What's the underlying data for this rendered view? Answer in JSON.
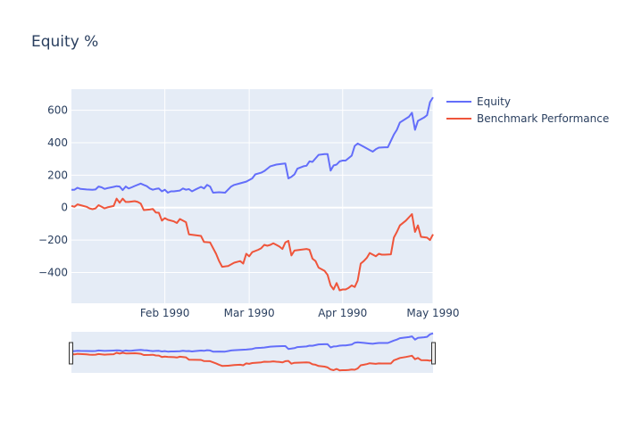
{
  "chart_data": {
    "type": "line",
    "title": "Equity %",
    "xlabel": "",
    "ylabel": "",
    "x_range": [
      "1990-01-01",
      "1990-05-01"
    ],
    "ylim": [
      -590,
      730
    ],
    "y_ticks": [
      600,
      400,
      200,
      0,
      -200,
      -400
    ],
    "y_tick_labels": [
      "600",
      "400",
      "200",
      "0",
      "−200",
      "−400"
    ],
    "x_ticks": [
      "1990-02-01",
      "1990-03-01",
      "1990-04-01",
      "1990-05-01"
    ],
    "x_tick_labels": [
      "Feb 1990",
      "Mar 1990",
      "Apr 1990",
      "May 1990"
    ],
    "grid": true,
    "legend_position": "top-right",
    "range_slider": true,
    "colors": {
      "plot_bg": "#E5ECF6",
      "text": "#2A3F5F",
      "grid": "#ffffff"
    },
    "series": [
      {
        "name": "Equity",
        "color": "#636EFA",
        "points": [
          [
            "1990-01-01",
            110
          ],
          [
            "1990-01-02",
            110
          ],
          [
            "1990-01-03",
            122
          ],
          [
            "1990-01-04",
            115
          ],
          [
            "1990-01-06",
            112
          ],
          [
            "1990-01-08",
            110
          ],
          [
            "1990-01-09",
            112
          ],
          [
            "1990-01-10",
            130
          ],
          [
            "1990-01-11",
            125
          ],
          [
            "1990-01-12",
            115
          ],
          [
            "1990-01-13",
            120
          ],
          [
            "1990-01-15",
            128
          ],
          [
            "1990-01-16",
            132
          ],
          [
            "1990-01-17",
            130
          ],
          [
            "1990-01-18",
            108
          ],
          [
            "1990-01-19",
            130
          ],
          [
            "1990-01-20",
            118
          ],
          [
            "1990-01-21",
            125
          ],
          [
            "1990-01-22",
            133
          ],
          [
            "1990-01-24",
            148
          ],
          [
            "1990-01-25",
            140
          ],
          [
            "1990-01-26",
            132
          ],
          [
            "1990-01-27",
            118
          ],
          [
            "1990-01-28",
            110
          ],
          [
            "1990-01-29",
            115
          ],
          [
            "1990-01-30",
            118
          ],
          [
            "1990-01-31",
            100
          ],
          [
            "1990-02-01",
            110
          ],
          [
            "1990-02-02",
            92
          ],
          [
            "1990-02-03",
            100
          ],
          [
            "1990-02-04",
            100
          ],
          [
            "1990-02-06",
            105
          ],
          [
            "1990-02-07",
            118
          ],
          [
            "1990-02-08",
            110
          ],
          [
            "1990-02-09",
            114
          ],
          [
            "1990-02-10",
            100
          ],
          [
            "1990-02-11",
            110
          ],
          [
            "1990-02-13",
            128
          ],
          [
            "1990-02-14",
            118
          ],
          [
            "1990-02-15",
            140
          ],
          [
            "1990-02-16",
            130
          ],
          [
            "1990-02-17",
            92
          ],
          [
            "1990-02-19",
            95
          ],
          [
            "1990-02-21",
            92
          ],
          [
            "1990-02-23",
            130
          ],
          [
            "1990-02-24",
            140
          ],
          [
            "1990-02-26",
            150
          ],
          [
            "1990-02-28",
            160
          ],
          [
            "1990-03-02",
            180
          ],
          [
            "1990-03-03",
            205
          ],
          [
            "1990-03-05",
            215
          ],
          [
            "1990-03-06",
            225
          ],
          [
            "1990-03-07",
            240
          ],
          [
            "1990-03-08",
            255
          ],
          [
            "1990-03-10",
            265
          ],
          [
            "1990-03-12",
            270
          ],
          [
            "1990-03-13",
            272
          ],
          [
            "1990-03-14",
            180
          ],
          [
            "1990-03-15",
            190
          ],
          [
            "1990-03-16",
            205
          ],
          [
            "1990-03-17",
            240
          ],
          [
            "1990-03-19",
            255
          ],
          [
            "1990-03-20",
            258
          ],
          [
            "1990-03-21",
            285
          ],
          [
            "1990-03-22",
            282
          ],
          [
            "1990-03-24",
            325
          ],
          [
            "1990-03-26",
            330
          ],
          [
            "1990-03-27",
            330
          ],
          [
            "1990-03-28",
            228
          ],
          [
            "1990-03-29",
            260
          ],
          [
            "1990-03-30",
            265
          ],
          [
            "1990-03-31",
            285
          ],
          [
            "1990-04-01",
            290
          ],
          [
            "1990-04-02",
            290
          ],
          [
            "1990-04-04",
            320
          ],
          [
            "1990-04-05",
            380
          ],
          [
            "1990-04-06",
            395
          ],
          [
            "1990-04-08",
            375
          ],
          [
            "1990-04-10",
            355
          ],
          [
            "1990-04-11",
            345
          ],
          [
            "1990-04-12",
            360
          ],
          [
            "1990-04-13",
            370
          ],
          [
            "1990-04-15",
            372
          ],
          [
            "1990-04-16",
            372
          ],
          [
            "1990-04-18",
            450
          ],
          [
            "1990-04-19",
            480
          ],
          [
            "1990-04-20",
            525
          ],
          [
            "1990-04-23",
            560
          ],
          [
            "1990-04-24",
            585
          ],
          [
            "1990-04-25",
            480
          ],
          [
            "1990-04-26",
            535
          ],
          [
            "1990-04-28",
            555
          ],
          [
            "1990-04-29",
            570
          ],
          [
            "1990-04-30",
            650
          ],
          [
            "1990-05-01",
            680
          ]
        ]
      },
      {
        "name": "Benchmark Performance",
        "color": "#EF553B",
        "points": [
          [
            "1990-01-01",
            10
          ],
          [
            "1990-01-02",
            5
          ],
          [
            "1990-01-03",
            20
          ],
          [
            "1990-01-04",
            15
          ],
          [
            "1990-01-06",
            5
          ],
          [
            "1990-01-07",
            -5
          ],
          [
            "1990-01-08",
            -10
          ],
          [
            "1990-01-09",
            -5
          ],
          [
            "1990-01-10",
            15
          ],
          [
            "1990-01-11",
            5
          ],
          [
            "1990-01-12",
            -5
          ],
          [
            "1990-01-13",
            2
          ],
          [
            "1990-01-15",
            10
          ],
          [
            "1990-01-16",
            55
          ],
          [
            "1990-01-17",
            30
          ],
          [
            "1990-01-18",
            55
          ],
          [
            "1990-01-19",
            35
          ],
          [
            "1990-01-20",
            35
          ],
          [
            "1990-01-22",
            40
          ],
          [
            "1990-01-23",
            35
          ],
          [
            "1990-01-24",
            25
          ],
          [
            "1990-01-25",
            -15
          ],
          [
            "1990-01-27",
            -12
          ],
          [
            "1990-01-28",
            -8
          ],
          [
            "1990-01-29",
            -30
          ],
          [
            "1990-01-30",
            -32
          ],
          [
            "1990-01-31",
            -80
          ],
          [
            "1990-02-01",
            -65
          ],
          [
            "1990-02-02",
            -75
          ],
          [
            "1990-02-04",
            -85
          ],
          [
            "1990-02-05",
            -95
          ],
          [
            "1990-02-06",
            -70
          ],
          [
            "1990-02-08",
            -90
          ],
          [
            "1990-02-09",
            -165
          ],
          [
            "1990-02-11",
            -170
          ],
          [
            "1990-02-13",
            -175
          ],
          [
            "1990-02-14",
            -212
          ],
          [
            "1990-02-16",
            -215
          ],
          [
            "1990-02-18",
            -285
          ],
          [
            "1990-02-19",
            -330
          ],
          [
            "1990-02-20",
            -365
          ],
          [
            "1990-02-22",
            -360
          ],
          [
            "1990-02-23",
            -350
          ],
          [
            "1990-02-24",
            -340
          ],
          [
            "1990-02-26",
            -330
          ],
          [
            "1990-02-27",
            -345
          ],
          [
            "1990-02-28",
            -285
          ],
          [
            "1990-03-01",
            -300
          ],
          [
            "1990-03-02",
            -275
          ],
          [
            "1990-03-04",
            -260
          ],
          [
            "1990-03-05",
            -250
          ],
          [
            "1990-03-06",
            -230
          ],
          [
            "1990-03-07",
            -235
          ],
          [
            "1990-03-08",
            -230
          ],
          [
            "1990-03-09",
            -220
          ],
          [
            "1990-03-10",
            -230
          ],
          [
            "1990-03-11",
            -240
          ],
          [
            "1990-03-12",
            -255
          ],
          [
            "1990-03-13",
            -215
          ],
          [
            "1990-03-14",
            -205
          ],
          [
            "1990-03-15",
            -295
          ],
          [
            "1990-03-16",
            -265
          ],
          [
            "1990-03-18",
            -260
          ],
          [
            "1990-03-20",
            -255
          ],
          [
            "1990-03-21",
            -260
          ],
          [
            "1990-03-22",
            -315
          ],
          [
            "1990-03-23",
            -330
          ],
          [
            "1990-03-24",
            -370
          ],
          [
            "1990-03-26",
            -390
          ],
          [
            "1990-03-27",
            -415
          ],
          [
            "1990-03-28",
            -480
          ],
          [
            "1990-03-29",
            -505
          ],
          [
            "1990-03-30",
            -465
          ],
          [
            "1990-03-31",
            -510
          ],
          [
            "1990-04-01",
            -505
          ],
          [
            "1990-04-02",
            -505
          ],
          [
            "1990-04-03",
            -495
          ],
          [
            "1990-04-04",
            -480
          ],
          [
            "1990-04-05",
            -490
          ],
          [
            "1990-04-06",
            -450
          ],
          [
            "1990-04-07",
            -345
          ],
          [
            "1990-04-08",
            -330
          ],
          [
            "1990-04-09",
            -310
          ],
          [
            "1990-04-10",
            -280
          ],
          [
            "1990-04-12",
            -300
          ],
          [
            "1990-04-13",
            -285
          ],
          [
            "1990-04-14",
            -290
          ],
          [
            "1990-04-15",
            -290
          ],
          [
            "1990-04-17",
            -288
          ],
          [
            "1990-04-18",
            -185
          ],
          [
            "1990-04-19",
            -150
          ],
          [
            "1990-04-20",
            -110
          ],
          [
            "1990-04-22",
            -80
          ],
          [
            "1990-04-24",
            -40
          ],
          [
            "1990-04-25",
            -150
          ],
          [
            "1990-04-26",
            -110
          ],
          [
            "1990-04-27",
            -180
          ],
          [
            "1990-04-29",
            -185
          ],
          [
            "1990-04-30",
            -200
          ],
          [
            "1990-05-01",
            -165
          ]
        ]
      }
    ]
  }
}
